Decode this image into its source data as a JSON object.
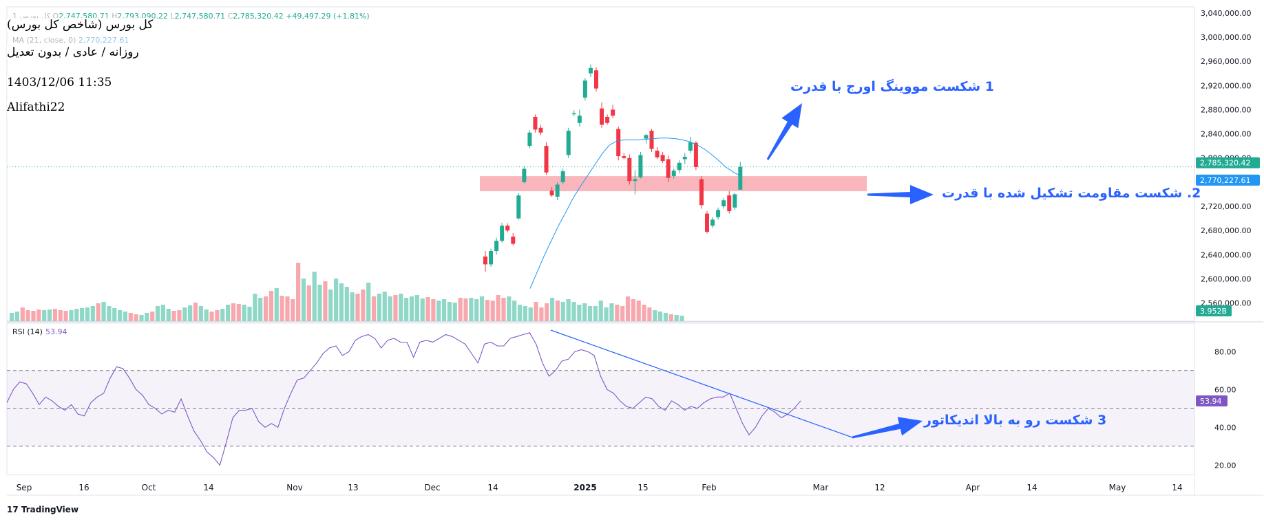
{
  "legend": {
    "symbol_name": "کل بورس 1",
    "open_label": "O",
    "open": "2,747,580.71",
    "high_label": "H",
    "high": "2,793,090.22",
    "low_label": "L",
    "low": "2,747,580.71",
    "close_label": "C",
    "close": "2,785,320.42",
    "change": "+49,497.29 (+1.81%)",
    "ma_label": "MA (21, close, 0)",
    "ma_value": "2,770,227.61",
    "rsi_label": "RSI (14)",
    "rsi_value": "53.94"
  },
  "info_box": {
    "name": "کل بورس (شاخص کل بورس)",
    "settings": "روزانه / عادی / بدون تعدیل",
    "datetime": "1403/12/06 11:35",
    "author": "Alifathi22"
  },
  "annotations": {
    "a1": "1  شکست مووینگ اورج با قدرت",
    "a2": "2. شکست مقاومت تشکیل شده با قدرت",
    "a3": "3  شکست رو به بالا اندیکاتور"
  },
  "branding": {
    "logo_text": "TradingView"
  },
  "colors": {
    "up": "#22ab94",
    "down": "#f23645",
    "volume_up": "#8fd7c7",
    "volume_down": "#f7a8ae",
    "ma": "#2196f3",
    "rsi": "#7e57c2",
    "resistance_zone": "#f8a9b1",
    "annotation": "#2962ff"
  },
  "chart_data": [
    {
      "type": "candlestick",
      "ylim": [
        2530000,
        3050000
      ],
      "y_ticks": [
        "3,040,000.00",
        "3,000,000.00",
        "2,960,000.00",
        "2,920,000.00",
        "2,880,000.00",
        "2,840,000.00",
        "2,800,000.00",
        "2,760,000.00",
        "2,720,000.00",
        "2,680,000.00",
        "2,640,000.00",
        "2,600,000.00",
        "2,560,000.00"
      ],
      "x_ticks": [
        "Sep",
        "16",
        "Oct",
        "14",
        "Nov",
        "13",
        "Dec",
        "14",
        "2025",
        "15",
        "Feb",
        "Mar",
        "12",
        "Apr",
        "14",
        "May",
        "14"
      ],
      "price_badges": [
        {
          "label": "2,785,320.42",
          "value": 2785320,
          "color": "#22ab94"
        },
        {
          "label": "2,770,227.61",
          "value": 2770228,
          "color": "#2196f3"
        }
      ],
      "volume_badge": "3.952B",
      "candles": [
        {
          "o": 2637000,
          "h": 2646000,
          "l": 2612000,
          "c": 2624000
        },
        {
          "o": 2624000,
          "h": 2650000,
          "l": 2620000,
          "c": 2646000
        },
        {
          "o": 2646000,
          "h": 2668000,
          "l": 2640000,
          "c": 2663000
        },
        {
          "o": 2663000,
          "h": 2693000,
          "l": 2660000,
          "c": 2688000
        },
        {
          "o": 2688000,
          "h": 2692000,
          "l": 2677000,
          "c": 2680000
        },
        {
          "o": 2670000,
          "h": 2676000,
          "l": 2655000,
          "c": 2658000
        },
        {
          "o": 2700000,
          "h": 2742000,
          "l": 2698000,
          "c": 2738000
        },
        {
          "o": 2760000,
          "h": 2786000,
          "l": 2758000,
          "c": 2782000
        },
        {
          "o": 2820000,
          "h": 2846000,
          "l": 2816000,
          "c": 2842000
        },
        {
          "o": 2868000,
          "h": 2872000,
          "l": 2842000,
          "c": 2847000
        },
        {
          "o": 2850000,
          "h": 2855000,
          "l": 2838000,
          "c": 2842000
        },
        {
          "o": 2820000,
          "h": 2826000,
          "l": 2772000,
          "c": 2776000
        },
        {
          "o": 2746000,
          "h": 2752000,
          "l": 2736000,
          "c": 2738000
        },
        {
          "o": 2736000,
          "h": 2760000,
          "l": 2730000,
          "c": 2756000
        },
        {
          "o": 2760000,
          "h": 2782000,
          "l": 2756000,
          "c": 2778000
        },
        {
          "o": 2805000,
          "h": 2850000,
          "l": 2800000,
          "c": 2845000
        },
        {
          "o": 2874000,
          "h": 2879000,
          "l": 2869000,
          "c": 2874000
        },
        {
          "o": 2858000,
          "h": 2880000,
          "l": 2852000,
          "c": 2870000
        },
        {
          "o": 2900000,
          "h": 2932000,
          "l": 2895000,
          "c": 2928000
        },
        {
          "o": 2940000,
          "h": 2955000,
          "l": 2934000,
          "c": 2949000
        },
        {
          "o": 2945000,
          "h": 2950000,
          "l": 2910000,
          "c": 2915000
        },
        {
          "o": 2882000,
          "h": 2892000,
          "l": 2850000,
          "c": 2855000
        },
        {
          "o": 2868000,
          "h": 2872000,
          "l": 2855000,
          "c": 2858000
        },
        {
          "o": 2880000,
          "h": 2888000,
          "l": 2866000,
          "c": 2870000
        },
        {
          "o": 2848000,
          "h": 2852000,
          "l": 2796000,
          "c": 2803000
        },
        {
          "o": 2803000,
          "h": 2808000,
          "l": 2798000,
          "c": 2800000
        },
        {
          "o": 2800000,
          "h": 2806000,
          "l": 2756000,
          "c": 2762000
        },
        {
          "o": 2762000,
          "h": 2780000,
          "l": 2740000,
          "c": 2765000
        },
        {
          "o": 2768000,
          "h": 2810000,
          "l": 2766000,
          "c": 2805000
        },
        {
          "o": 2832000,
          "h": 2840000,
          "l": 2824000,
          "c": 2838000
        },
        {
          "o": 2845000,
          "h": 2848000,
          "l": 2810000,
          "c": 2815000
        },
        {
          "o": 2812000,
          "h": 2818000,
          "l": 2798000,
          "c": 2801000
        },
        {
          "o": 2805000,
          "h": 2810000,
          "l": 2792000,
          "c": 2795000
        },
        {
          "o": 2798000,
          "h": 2804000,
          "l": 2760000,
          "c": 2767000
        },
        {
          "o": 2770000,
          "h": 2782000,
          "l": 2766000,
          "c": 2779000
        },
        {
          "o": 2780000,
          "h": 2796000,
          "l": 2775000,
          "c": 2792000
        },
        {
          "o": 2798000,
          "h": 2808000,
          "l": 2790000,
          "c": 2802000
        },
        {
          "o": 2812000,
          "h": 2835000,
          "l": 2808000,
          "c": 2826000
        },
        {
          "o": 2825000,
          "h": 2828000,
          "l": 2780000,
          "c": 2785000
        },
        {
          "o": 2765000,
          "h": 2770000,
          "l": 2716000,
          "c": 2722000
        },
        {
          "o": 2708000,
          "h": 2712000,
          "l": 2675000,
          "c": 2678000
        },
        {
          "o": 2688000,
          "h": 2702000,
          "l": 2684000,
          "c": 2698000
        },
        {
          "o": 2702000,
          "h": 2718000,
          "l": 2698000,
          "c": 2714000
        },
        {
          "o": 2720000,
          "h": 2734000,
          "l": 2716000,
          "c": 2730000
        },
        {
          "o": 2738000,
          "h": 2745000,
          "l": 2708000,
          "c": 2712000
        },
        {
          "o": 2718000,
          "h": 2742000,
          "l": 2714000,
          "c": 2740000
        },
        {
          "o": 2747581,
          "h": 2793090,
          "l": 2747581,
          "c": 2785320
        }
      ],
      "ma": [
        2584000,
        2612000,
        2640000,
        2665000,
        2690000,
        2712000,
        2735000,
        2754000,
        2772000,
        2790000,
        2808000,
        2822000,
        2828000,
        2830000,
        2830000,
        2830000,
        2831000,
        2832000,
        2833000,
        2833000,
        2832000,
        2830000,
        2827000,
        2822000,
        2815000,
        2806000,
        2796000,
        2785000,
        2777000,
        2770228
      ],
      "volume_up_down": [
        1,
        1,
        0,
        0,
        0,
        0,
        1,
        1,
        0,
        0,
        0,
        1,
        1,
        1,
        1,
        1,
        0,
        1,
        1,
        1,
        1,
        1,
        0,
        0,
        1,
        1,
        0,
        1,
        1,
        1,
        0,
        0,
        1,
        1,
        0,
        1,
        1,
        0,
        0,
        1,
        1,
        0,
        0,
        1,
        1,
        1,
        1,
        0,
        0,
        1,
        0,
        0,
        0,
        0,
        1,
        0,
        1,
        1,
        0,
        1,
        1,
        1,
        1,
        1,
        0,
        0,
        1,
        0,
        1,
        1,
        1,
        0,
        1,
        1,
        1,
        1,
        1,
        0,
        0,
        1,
        1,
        1,
        1,
        0,
        0,
        1,
        1,
        1,
        0,
        0,
        0,
        0,
        1,
        1,
        1,
        1,
        1,
        0,
        0,
        0,
        1,
        0,
        1,
        1,
        1,
        1,
        1,
        1,
        1,
        1,
        1,
        1,
        0,
        0,
        0,
        0,
        0,
        0,
        0,
        1,
        1,
        1,
        0,
        1,
        1
      ],
      "volume": [
        1.2,
        1.4,
        2.0,
        1.6,
        1.5,
        1.7,
        1.6,
        1.7,
        1.8,
        1.6,
        1.5,
        1.6,
        1.8,
        1.9,
        2.0,
        2.2,
        2.6,
        2.8,
        2.2,
        1.9,
        1.6,
        1.4,
        1.2,
        1.0,
        0.9,
        1.2,
        1.4,
        2.2,
        2.4,
        1.8,
        1.5,
        1.6,
        2.0,
        2.3,
        2.7,
        2.2,
        1.7,
        1.4,
        1.6,
        1.8,
        2.4,
        2.6,
        2.5,
        2.4,
        2.1,
        4.0,
        3.4,
        3.6,
        4.4,
        4.8,
        3.7,
        3.6,
        3.2,
        8.5,
        6.2,
        5.2,
        7.2,
        5.3,
        5.8,
        4.6,
        6.2,
        5.5,
        5.0,
        4.2,
        4.0,
        4.6,
        5.6,
        3.6,
        4.0,
        4.3,
        3.6,
        3.8,
        4.0,
        3.4,
        3.6,
        3.8,
        3.3,
        3.5,
        3.2,
        3.0,
        3.2,
        2.8,
        2.7,
        3.4,
        3.3,
        3.4,
        3.2,
        3.6,
        3.1,
        3.0,
        3.8,
        3.4,
        3.6,
        3.0,
        2.4,
        2.2,
        2.0,
        2.8,
        2.0,
        2.6,
        3.4,
        3.0,
        2.8,
        3.2,
        2.8,
        2.4,
        2.6,
        2.2,
        2.2,
        3.0,
        2.0,
        2.6,
        2.4,
        2.2,
        3.6,
        3.2,
        3.0,
        2.4,
        2.0,
        1.6,
        1.4,
        1.2,
        1.0,
        0.9,
        0.8
      ],
      "resistance_zone": {
        "low": 2745000,
        "high": 2770000
      }
    },
    {
      "type": "line",
      "title": "RSI (14)",
      "ylim": [
        15,
        95
      ],
      "y_ticks": [
        "80.00",
        "60.00",
        "40.00",
        "20.00"
      ],
      "bands": [
        70,
        50,
        30
      ],
      "rsi": [
        53,
        60,
        64,
        63,
        58,
        52,
        56,
        54,
        51,
        49,
        52,
        47,
        46,
        53,
        56,
        58,
        66,
        72,
        71,
        66,
        60,
        57,
        52,
        50,
        47,
        49,
        48,
        55,
        46,
        38,
        33,
        27,
        24,
        20,
        32,
        45,
        49,
        49,
        50,
        43,
        40,
        42,
        40,
        50,
        58,
        65,
        66,
        70,
        74,
        79,
        82,
        83,
        78,
        80,
        86,
        88,
        89,
        87,
        82,
        86,
        87,
        85,
        85,
        77,
        85,
        86,
        85,
        87,
        89,
        88,
        86,
        84,
        79,
        74,
        84,
        85,
        83,
        83,
        87,
        88,
        89,
        90,
        84,
        74,
        67,
        70,
        75,
        76,
        80,
        81,
        80,
        78,
        67,
        60,
        58,
        54,
        51,
        50,
        53,
        56,
        55,
        51,
        49,
        54,
        52,
        49,
        51,
        50,
        53,
        55,
        56,
        56,
        58,
        50,
        42,
        36,
        40,
        46,
        50,
        48,
        45,
        47,
        50,
        54
      ]
    }
  ]
}
